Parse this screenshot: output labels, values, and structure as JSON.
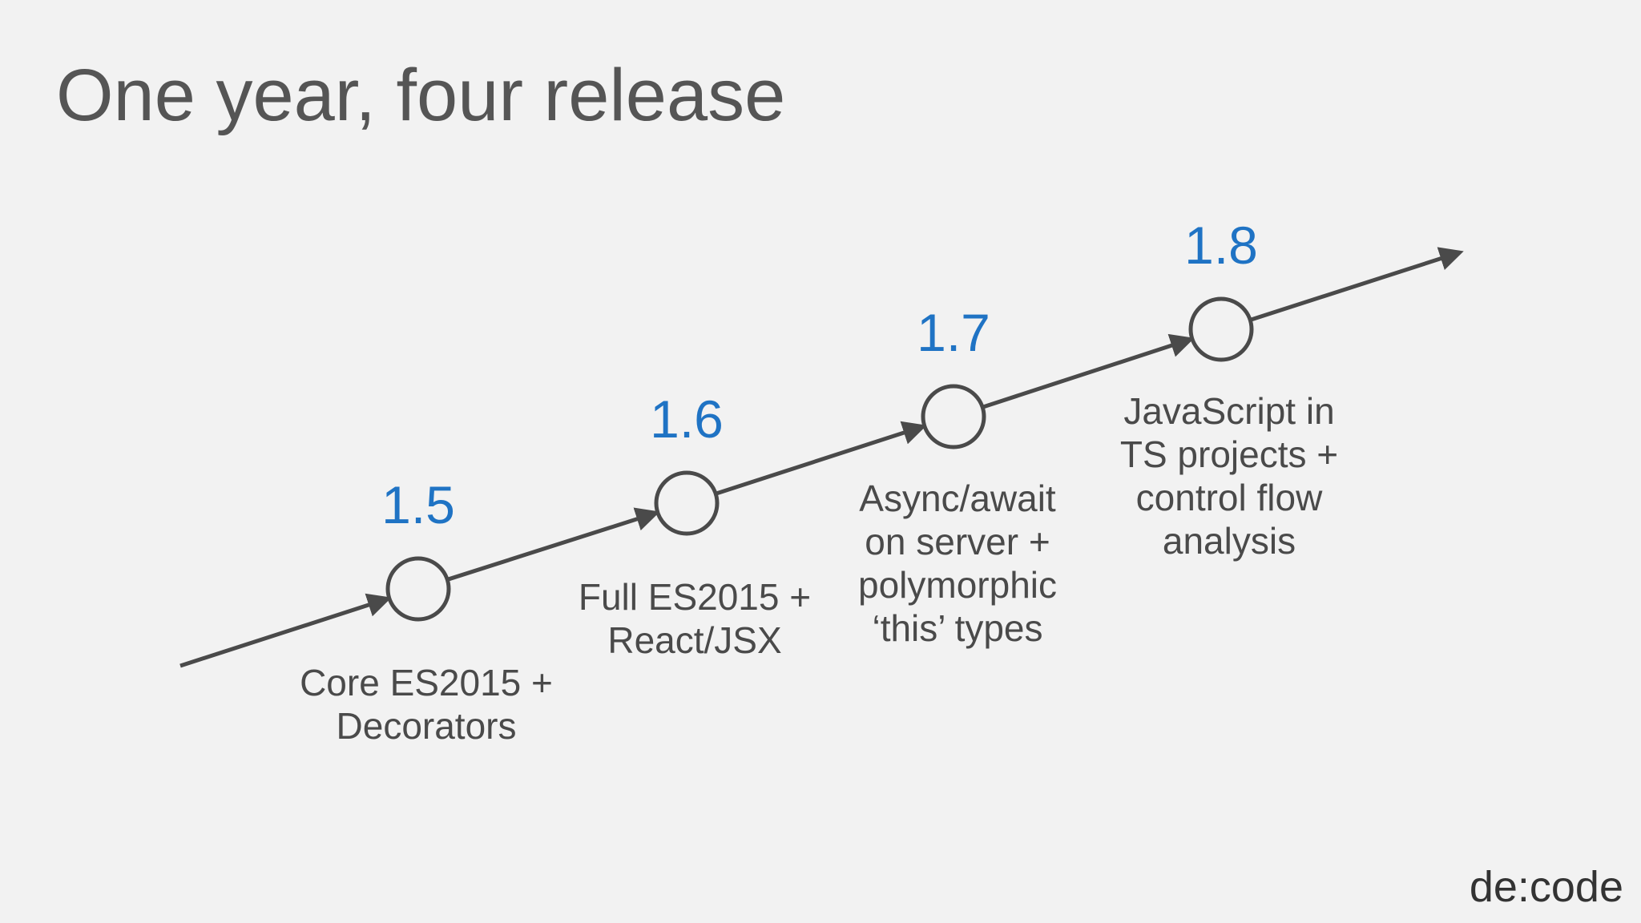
{
  "title": "One year, four release",
  "releases": [
    {
      "version": "1.5",
      "description": [
        "Core ES2015 +",
        "Decorators"
      ]
    },
    {
      "version": "1.6",
      "description": [
        "Full ES2015 +",
        "React/JSX"
      ]
    },
    {
      "version": "1.7",
      "description": [
        "Async/await",
        "on server +",
        "polymorphic",
        "‘this’ types"
      ]
    },
    {
      "version": "1.8",
      "description": [
        "JavaScript in",
        "TS projects +",
        "control flow",
        "analysis"
      ]
    }
  ],
  "logo": "de:code"
}
